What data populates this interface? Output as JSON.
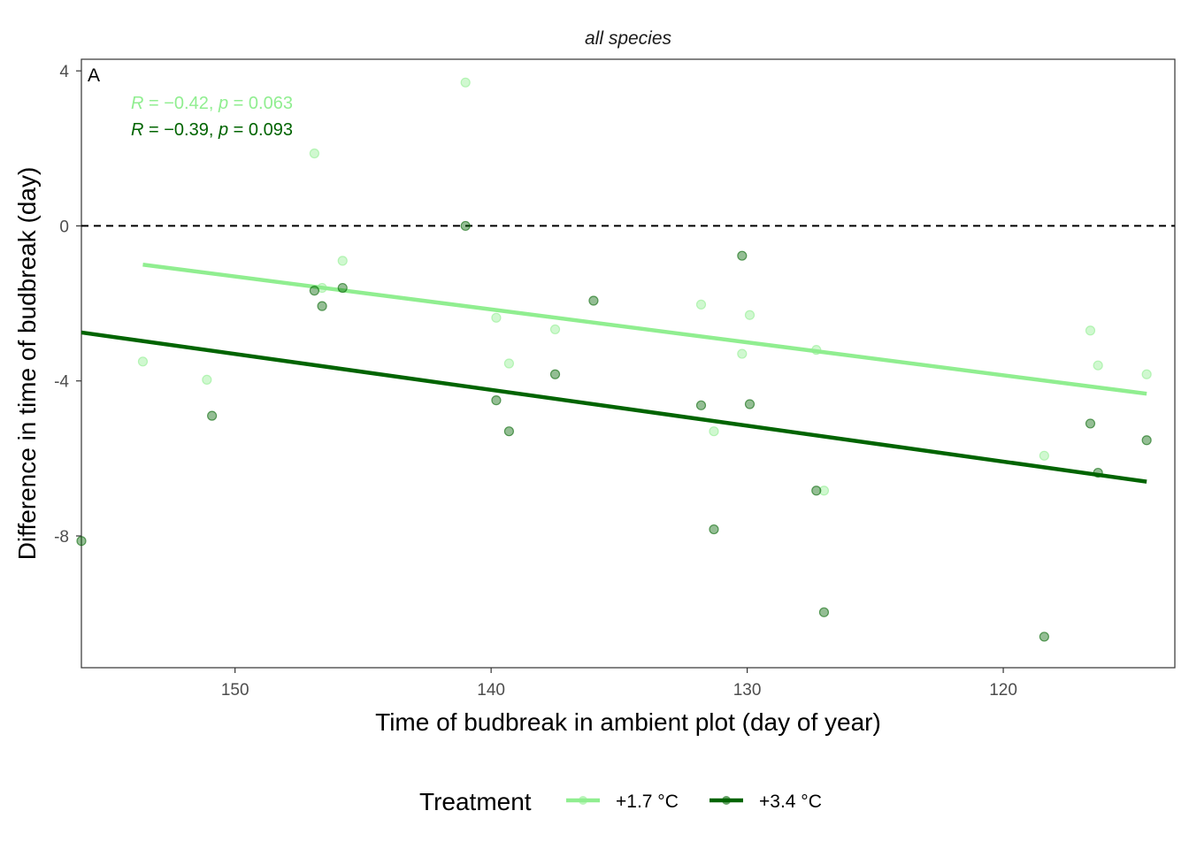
{
  "chart_data": {
    "type": "scatter",
    "title": "all species",
    "panel_label": "A",
    "xlabel": "Time of budbreak in ambient plot (day of year)",
    "ylabel": "Difference in time of budbreak (day)",
    "x_reversed": true,
    "xlim": [
      156,
      113.3
    ],
    "ylim": [
      -11.4,
      4.3
    ],
    "xticks": [
      150,
      140,
      130,
      120
    ],
    "yticks": [
      4,
      0,
      -4,
      -8
    ],
    "reference_line": {
      "y": 0,
      "style": "dashed"
    },
    "grid": false,
    "legend": {
      "title": "Treatment",
      "position": "bottom",
      "entries": [
        "+1.7 °C",
        "+3.4 °C"
      ]
    },
    "series": [
      {
        "name": "+1.7 °C",
        "color": "#90ee90",
        "stat": {
          "r": "−0.42",
          "p": "0.063"
        },
        "trend": {
          "x": [
            153.6,
            114.4
          ],
          "y": [
            -1.0,
            -4.33
          ]
        },
        "points": [
          {
            "x": 153.6,
            "y": -3.5
          },
          {
            "x": 151.1,
            "y": -3.97
          },
          {
            "x": 146.9,
            "y": 1.87
          },
          {
            "x": 146.6,
            "y": -1.6
          },
          {
            "x": 145.8,
            "y": -0.9
          },
          {
            "x": 141.0,
            "y": 3.7
          },
          {
            "x": 139.8,
            "y": -2.37
          },
          {
            "x": 139.3,
            "y": -3.55
          },
          {
            "x": 137.5,
            "y": -2.67
          },
          {
            "x": 131.8,
            "y": -2.03
          },
          {
            "x": 131.3,
            "y": -5.3
          },
          {
            "x": 130.2,
            "y": -3.3
          },
          {
            "x": 129.9,
            "y": -2.3
          },
          {
            "x": 127.3,
            "y": -3.2
          },
          {
            "x": 127.0,
            "y": -6.83
          },
          {
            "x": 118.4,
            "y": -5.93
          },
          {
            "x": 116.6,
            "y": -2.7
          },
          {
            "x": 116.3,
            "y": -3.6
          },
          {
            "x": 114.4,
            "y": -3.83
          }
        ]
      },
      {
        "name": "+3.4 °C",
        "color": "#006400",
        "stat": {
          "r": "−0.39",
          "p": "0.093"
        },
        "trend": {
          "x": [
            156.0,
            114.4
          ],
          "y": [
            -2.75,
            -6.6
          ]
        },
        "points": [
          {
            "x": 156.0,
            "y": -8.13
          },
          {
            "x": 150.9,
            "y": -4.9
          },
          {
            "x": 146.9,
            "y": -1.67
          },
          {
            "x": 146.6,
            "y": -2.07
          },
          {
            "x": 145.8,
            "y": -1.6
          },
          {
            "x": 141.0,
            "y": 0.0
          },
          {
            "x": 139.8,
            "y": -4.5
          },
          {
            "x": 139.3,
            "y": -5.3
          },
          {
            "x": 137.5,
            "y": -3.83
          },
          {
            "x": 136.0,
            "y": -1.93
          },
          {
            "x": 131.8,
            "y": -4.63
          },
          {
            "x": 131.3,
            "y": -7.83
          },
          {
            "x": 130.2,
            "y": -0.77
          },
          {
            "x": 129.9,
            "y": -4.6
          },
          {
            "x": 127.3,
            "y": -6.83
          },
          {
            "x": 127.0,
            "y": -9.97
          },
          {
            "x": 118.4,
            "y": -10.6
          },
          {
            "x": 116.6,
            "y": -5.1
          },
          {
            "x": 116.3,
            "y": -6.37
          },
          {
            "x": 114.4,
            "y": -5.53
          }
        ]
      }
    ]
  }
}
